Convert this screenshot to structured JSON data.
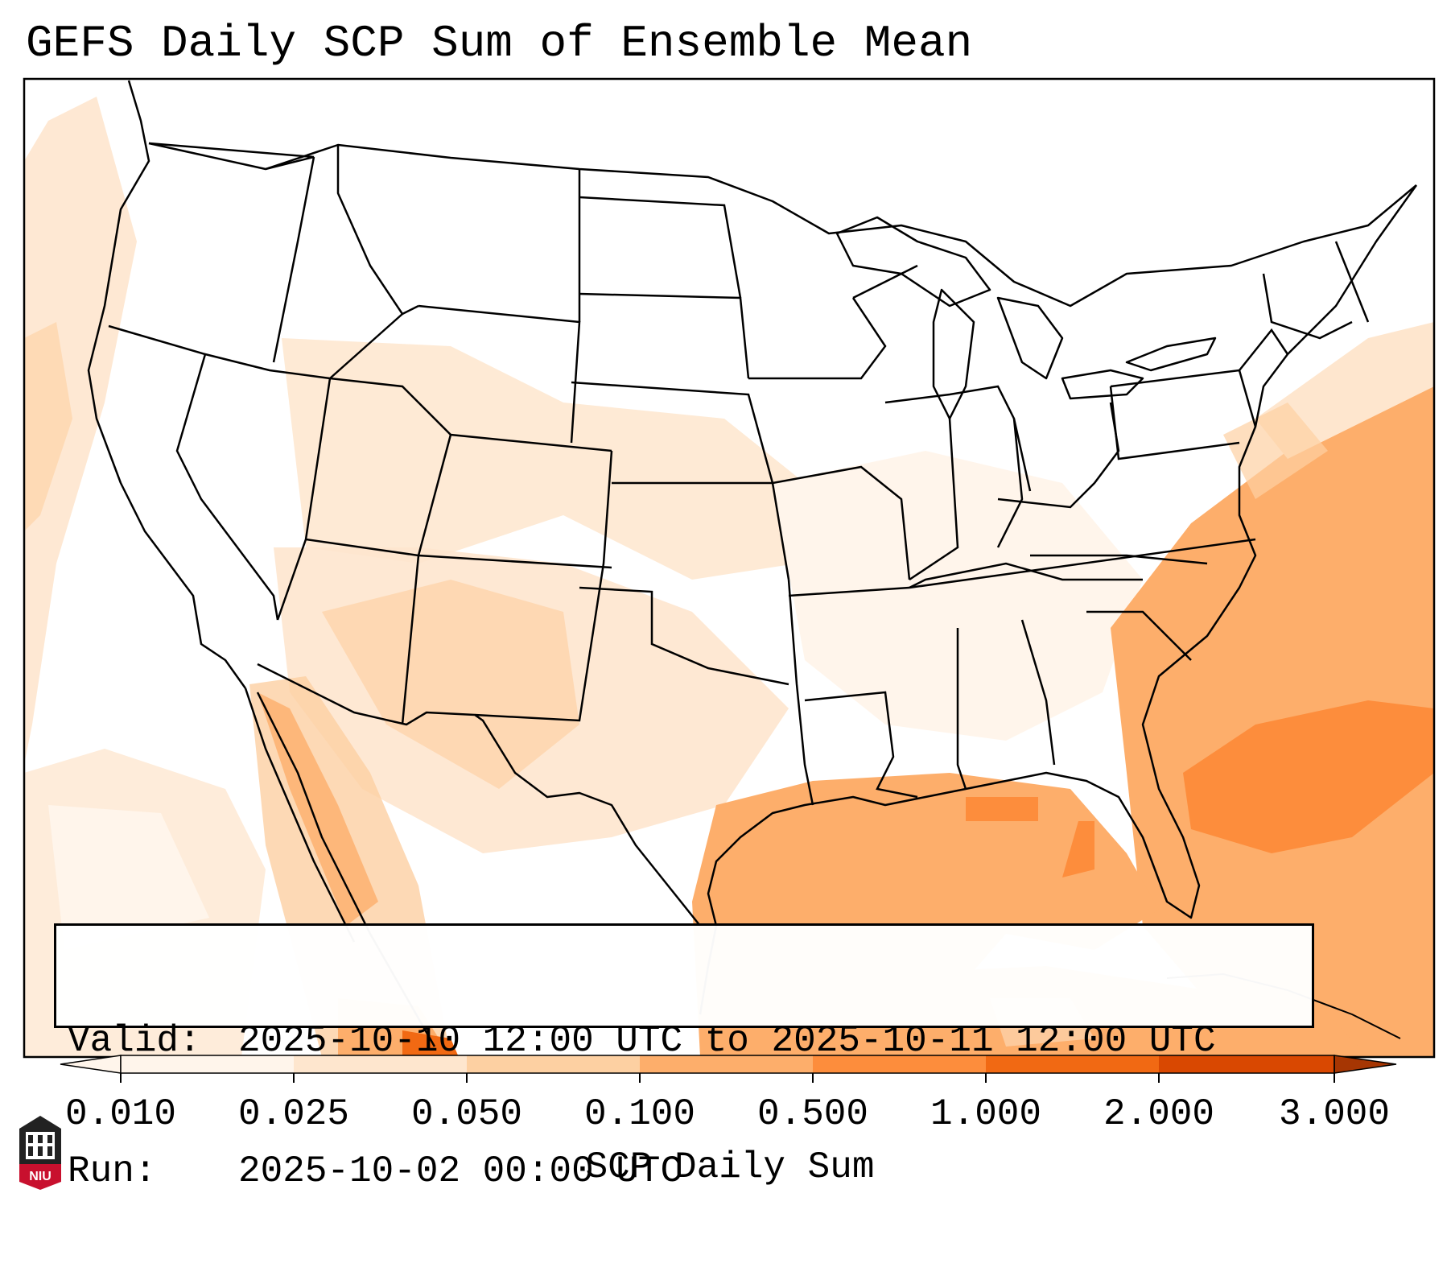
{
  "title": "GEFS Daily SCP Sum of Ensemble Mean",
  "info": {
    "valid_label": "Valid:",
    "valid_value": "2025-10-10 12:00 UTC to 2025-10-11 12:00 UTC",
    "run_label": "Run:",
    "run_value": "2025-10-02 00:00 UTC"
  },
  "colorbar": {
    "label": "SCP Daily Sum",
    "ticks": [
      "0.010",
      "0.025",
      "0.050",
      "0.100",
      "0.500",
      "1.000",
      "2.000",
      "3.000"
    ],
    "colors": [
      "#fff5eb",
      "#fee6ce",
      "#fdd0a2",
      "#fdae6b",
      "#fd8d3c",
      "#f16913",
      "#d94801",
      "#a63603"
    ],
    "extend": "both"
  },
  "logo": {
    "text": "NIU",
    "color": "#c8102e"
  },
  "map": {
    "region": "Contiguous United States",
    "projection": "Lambert Conformal",
    "features": [
      "state-boundaries",
      "coastlines",
      "country-borders"
    ]
  }
}
